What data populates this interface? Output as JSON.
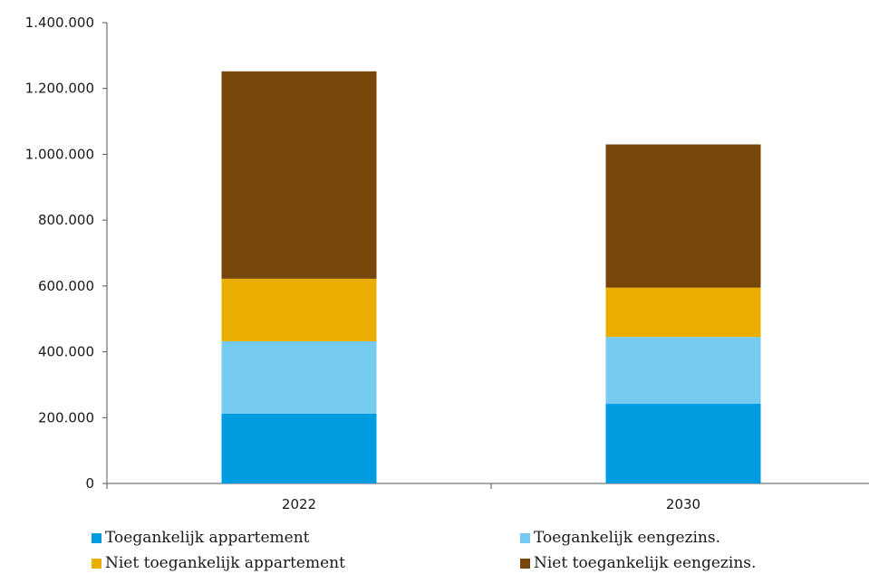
{
  "chart_data": {
    "type": "bar",
    "stacked": true,
    "categories": [
      "2022",
      "2030"
    ],
    "series": [
      {
        "name": "Toegankelijk appartement",
        "color": "#009cdf",
        "values": [
          212000,
          242000
        ]
      },
      {
        "name": "Toegankelijk eengezins.",
        "color": "#74cbef",
        "values": [
          220000,
          203000
        ]
      },
      {
        "name": "Niet toegankelijk appartement",
        "color": "#e9ae00",
        "values": [
          190000,
          150000
        ]
      },
      {
        "name": "Niet toegankelijk eengezins.",
        "color": "#77460b",
        "values": [
          630000,
          435000
        ]
      }
    ],
    "ylim": [
      0,
      1400000
    ],
    "yticks": [
      "0",
      "200.000",
      "400.000",
      "600.000",
      "800.000",
      "1.000.000",
      "1.200.000",
      "1.400.000"
    ],
    "grid": false,
    "legend_position": "bottom"
  }
}
